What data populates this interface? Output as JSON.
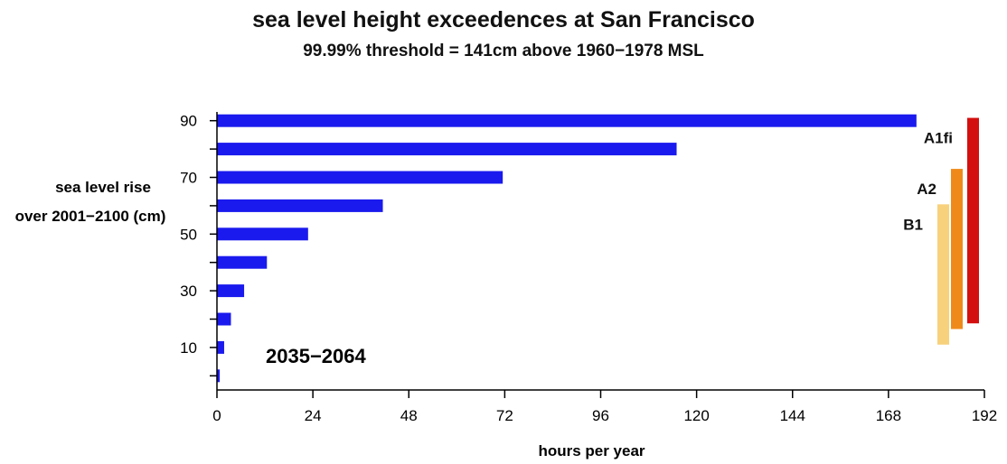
{
  "title": "sea level height exceedences at San Francisco",
  "subtitle": "99.99% threshold = 141cm above 1960−1978 MSL",
  "chart_data": {
    "type": "bar",
    "orientation": "horizontal",
    "title": "sea level height exceedences at San Francisco",
    "subtitle": "99.99% threshold = 141cm above 1960−1978 MSL",
    "xlabel": "hours per year",
    "ylabel_line1": "sea level rise",
    "ylabel_line2": "over 2001−2100 (cm)",
    "xlim": [
      0,
      192
    ],
    "ylim": [
      -5,
      95
    ],
    "xticks": [
      "0",
      "24",
      "48",
      "72",
      "96",
      "120",
      "144",
      "168",
      "192"
    ],
    "yticks": [
      "10",
      "30",
      "50",
      "70",
      "90"
    ],
    "period_label": "2035−2064",
    "bar_color": "#1a1aee",
    "series": [
      {
        "y": [
          0,
          10,
          20,
          30,
          40,
          50,
          60,
          70,
          80,
          90
        ],
        "values": [
          0.7,
          1.8,
          3.5,
          6.8,
          12.5,
          22.8,
          41.5,
          71.5,
          115,
          175
        ]
      }
    ],
    "scenarios": [
      {
        "name": "A1fi",
        "low": 18.5,
        "high": 91,
        "color": "#d40f0f"
      },
      {
        "name": "A2",
        "low": 16.5,
        "high": 73,
        "color": "#ef8a1a"
      },
      {
        "name": "B1",
        "low": 11,
        "high": 60.5,
        "color": "#f7d17c"
      }
    ]
  }
}
